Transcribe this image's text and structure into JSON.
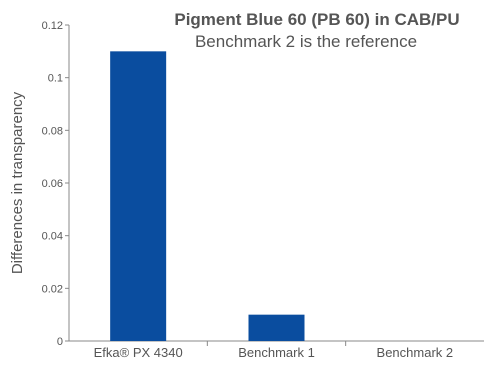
{
  "chart_data": {
    "type": "bar",
    "title": "Pigment Blue 60 (PB 60) in CAB/PU",
    "subtitle": "Benchmark 2 is the reference",
    "xlabel": "",
    "ylabel": "Differences in transparency",
    "categories": [
      "Efka® PX 4340",
      "Benchmark 1",
      "Benchmark 2"
    ],
    "values": [
      0.11,
      0.01,
      0.0
    ],
    "ylim": [
      0,
      0.12
    ],
    "yticks": [
      0,
      0.02,
      0.04,
      0.06,
      0.08,
      0.1,
      0.12
    ],
    "ytick_labels": [
      "0",
      "0.02",
      "0.04",
      "0.06",
      "0.08",
      "0.1",
      "0.12"
    ],
    "bar_color": "#0a4d9f",
    "axis_color": "#888888",
    "text_color": "#555555",
    "grid": false,
    "legend": "none"
  }
}
